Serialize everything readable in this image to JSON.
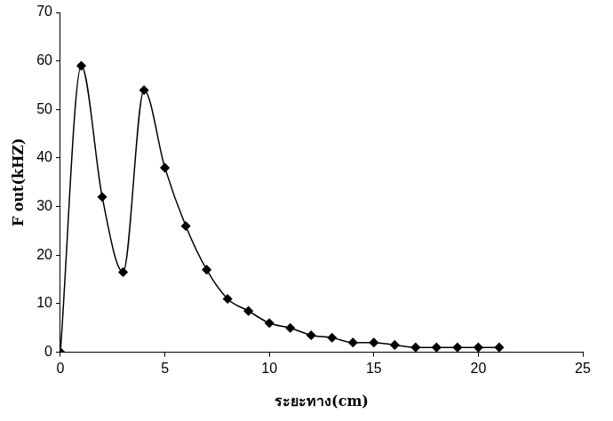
{
  "chart_data": {
    "type": "line",
    "x_label": "ระยะทาง(cm)",
    "y_label": "F out(kHZ)",
    "x": [
      0,
      1,
      2,
      3,
      4,
      5,
      6,
      7,
      8,
      9,
      10,
      11,
      12,
      13,
      14,
      15,
      16,
      17,
      18,
      19,
      20,
      21
    ],
    "values": [
      0,
      59,
      32,
      16.5,
      54,
      38,
      26,
      17,
      11,
      8.5,
      6,
      5,
      3.5,
      3,
      2,
      2,
      1.5,
      1,
      1,
      1,
      1,
      1
    ],
    "color": "#000000",
    "marker": "diamond",
    "line_style": "solid",
    "xlim": [
      0,
      25
    ],
    "xticks": [
      0,
      5,
      10,
      15,
      20,
      25
    ],
    "ylim": [
      0,
      70
    ],
    "yticks": [
      0,
      10,
      20,
      30,
      40,
      50,
      60,
      70
    ],
    "grid": false
  }
}
